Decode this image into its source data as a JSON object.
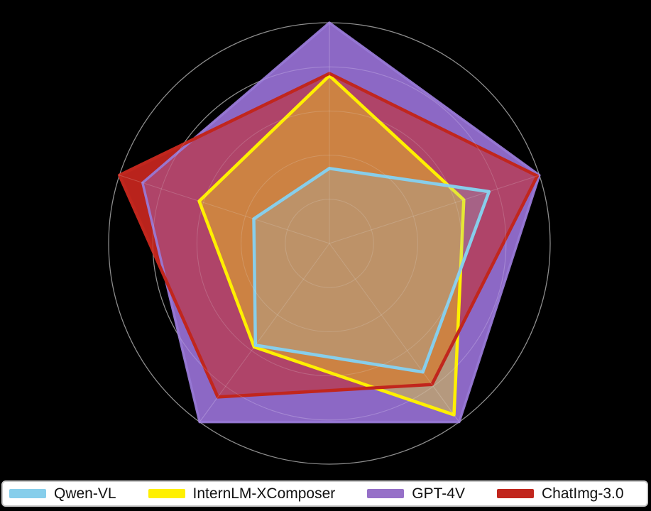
{
  "page": {
    "background_color": "#000000",
    "legend_background": "#ffffff",
    "legend_border_color": "#c9c9c9"
  },
  "chart_data": {
    "type": "radar",
    "title": "",
    "num_axes": 5,
    "axis_order": [
      "top",
      "upper-right",
      "lower-right",
      "lower-left",
      "upper-left"
    ],
    "axis_labels": [
      "",
      "",
      "",
      "",
      ""
    ],
    "axis_labels_visible": false,
    "scale": {
      "min": 0,
      "max": 100,
      "rings": 5,
      "grid_shape": "circular",
      "grid_color": "#8f8f8f"
    },
    "legend_position": "bottom",
    "series": [
      {
        "name": "Qwen-VL",
        "color": "#87CEEB",
        "fill_opacity": 0.22,
        "values": [
          34,
          76,
          72,
          57,
          36
        ]
      },
      {
        "name": "InternLM-XComposer",
        "color": "#FFF000",
        "fill_opacity": 0.36,
        "values": [
          76,
          64,
          96,
          58,
          62
        ]
      },
      {
        "name": "GPT-4V",
        "color": "#9670C8",
        "fill_opacity": 0.93,
        "values": [
          100,
          100,
          100,
          100,
          89
        ]
      },
      {
        "name": "ChatImg-3.0",
        "color": "#C1261D",
        "fill_opacity": 0.55,
        "values": [
          77,
          99,
          79,
          86,
          100
        ]
      }
    ]
  }
}
